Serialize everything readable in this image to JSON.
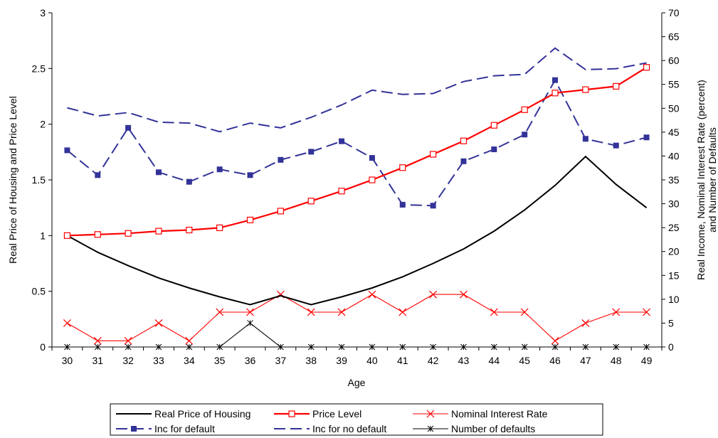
{
  "chart_data": {
    "type": "line",
    "x": [
      30,
      31,
      32,
      33,
      34,
      35,
      36,
      37,
      38,
      39,
      40,
      41,
      42,
      43,
      44,
      45,
      46,
      47,
      48,
      49
    ],
    "xlabel": "Age",
    "ylabel_left": "Real Price of Housing and Price Level",
    "ylabel_right_line1": "Real Income, Nominal Interest Rate (percent)",
    "ylabel_right_line2": "and Number of Defaults",
    "ylim_left": [
      0,
      3
    ],
    "yticks_left": [
      "0",
      "0.5",
      "1",
      "1.5",
      "2",
      "2.5",
      "3"
    ],
    "ylim_right": [
      0,
      70
    ],
    "yticks_right": [
      "0",
      "5",
      "10",
      "15",
      "20",
      "25",
      "30",
      "35",
      "40",
      "45",
      "50",
      "55",
      "60",
      "65",
      "70"
    ],
    "legend_position": "bottom",
    "series": [
      {
        "name": "Real Price of Housing",
        "axis": "left",
        "color": "#000000",
        "style": "solid",
        "marker": "none",
        "values": [
          1.0,
          0.85,
          0.73,
          0.62,
          0.53,
          0.45,
          0.38,
          0.46,
          0.38,
          0.45,
          0.53,
          0.63,
          0.75,
          0.88,
          1.04,
          1.23,
          1.45,
          1.71,
          1.46,
          1.25
        ]
      },
      {
        "name": "Price Level",
        "axis": "left",
        "color": "#ff0000",
        "style": "solid-thick",
        "marker": "open-square",
        "values": [
          1.0,
          1.01,
          1.02,
          1.04,
          1.05,
          1.07,
          1.14,
          1.22,
          1.31,
          1.4,
          1.5,
          1.61,
          1.73,
          1.85,
          1.99,
          2.13,
          2.28,
          2.31,
          2.34,
          2.51
        ]
      },
      {
        "name": "Nominal Interest Rate",
        "axis": "right",
        "color": "#ff0000",
        "style": "solid-thin",
        "marker": "x",
        "values": [
          5,
          1.3,
          1.3,
          5,
          1.3,
          7.3,
          7.3,
          11,
          7.3,
          7.3,
          11,
          7.3,
          11,
          11,
          7.3,
          7.3,
          1.3,
          5,
          7.3,
          7.3
        ]
      },
      {
        "name": "Inc for default",
        "axis": "right",
        "color": "#333399",
        "style": "dashed",
        "marker": "filled-square",
        "values": [
          41.2,
          36.0,
          45.9,
          36.6,
          34.6,
          37.2,
          36.0,
          39.2,
          40.9,
          43.1,
          39.6,
          29.8,
          29.6,
          38.9,
          41.4,
          44.5,
          55.9,
          43.6,
          42.2,
          43.9
        ]
      },
      {
        "name": "Inc for no default",
        "axis": "right",
        "color": "#333399",
        "style": "dashed",
        "marker": "none",
        "values": [
          50.1,
          48.4,
          49.1,
          47.1,
          46.9,
          45.1,
          46.9,
          45.9,
          48.1,
          50.7,
          53.8,
          52.9,
          53.1,
          55.6,
          56.8,
          57.1,
          62.6,
          58.1,
          58.3,
          59.5
        ]
      },
      {
        "name": "Number of defaults",
        "axis": "right",
        "color": "#000000",
        "style": "solid-thin",
        "marker": "asterisk",
        "values": [
          0,
          0,
          0,
          0,
          0,
          0,
          5,
          0,
          0,
          0,
          0,
          0,
          0,
          0,
          0,
          0,
          0,
          0,
          0,
          0
        ]
      }
    ]
  }
}
